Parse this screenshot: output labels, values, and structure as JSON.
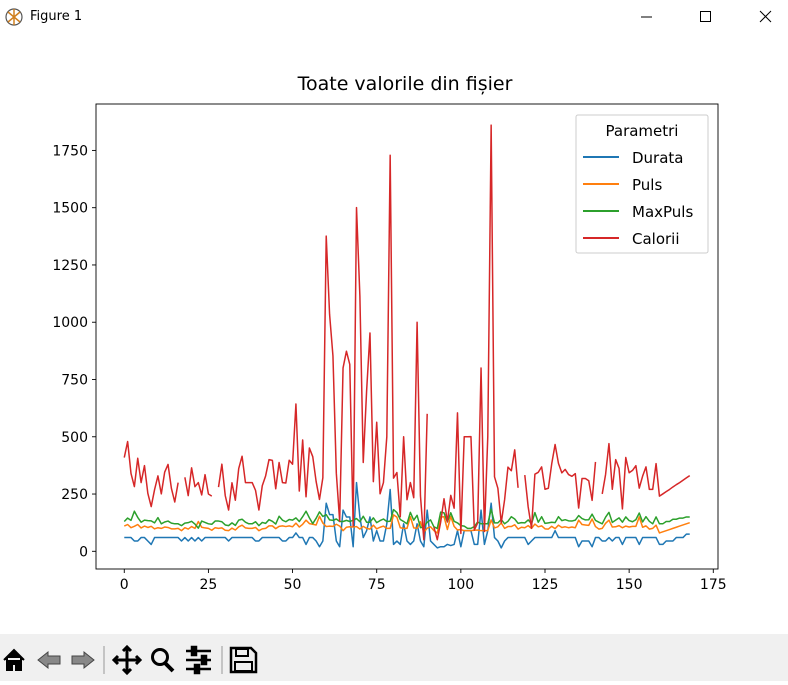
{
  "window": {
    "title": "Figure 1"
  },
  "chart_data": {
    "type": "line",
    "title": "Toate valorile din fișier",
    "legend_title": "Parametri",
    "legend_loc": "upper right",
    "xlim": [
      -8.4,
      176.4
    ],
    "ylim": [
      -77.27,
      1952.67
    ],
    "xticks": [
      0,
      25,
      50,
      75,
      100,
      125,
      150,
      175
    ],
    "yticks": [
      0,
      250,
      500,
      750,
      1000,
      1250,
      1500,
      1750
    ],
    "x": [
      0,
      1,
      2,
      3,
      4,
      5,
      6,
      7,
      8,
      9,
      10,
      11,
      12,
      13,
      14,
      15,
      16,
      17,
      18,
      19,
      20,
      21,
      22,
      23,
      24,
      25,
      26,
      27,
      28,
      29,
      30,
      31,
      32,
      33,
      34,
      35,
      36,
      37,
      38,
      39,
      40,
      41,
      42,
      43,
      44,
      45,
      46,
      47,
      48,
      49,
      50,
      51,
      52,
      53,
      54,
      55,
      56,
      57,
      58,
      59,
      60,
      61,
      62,
      63,
      64,
      65,
      66,
      67,
      68,
      69,
      70,
      71,
      72,
      73,
      74,
      75,
      76,
      77,
      78,
      79,
      80,
      81,
      82,
      83,
      84,
      85,
      86,
      87,
      88,
      89,
      90,
      91,
      92,
      93,
      94,
      95,
      96,
      97,
      98,
      99,
      100,
      101,
      102,
      103,
      104,
      105,
      106,
      107,
      108,
      109,
      110,
      111,
      112,
      113,
      114,
      115,
      116,
      117,
      118,
      119,
      120,
      121,
      122,
      123,
      124,
      125,
      126,
      127,
      128,
      129,
      130,
      131,
      132,
      133,
      134,
      135,
      136,
      137,
      138,
      139,
      140,
      141,
      142,
      143,
      144,
      145,
      146,
      147,
      148,
      149,
      150,
      151,
      152,
      153,
      154,
      155,
      156,
      157,
      158,
      159,
      160,
      161,
      162,
      163,
      164,
      165,
      166,
      167,
      168
    ],
    "series": [
      {
        "name": "Durata",
        "color": "#1f77b4",
        "values": [
          60,
          60,
          60,
          45,
          45,
          60,
          60,
          45,
          30,
          60,
          60,
          60,
          60,
          60,
          60,
          60,
          60,
          45,
          60,
          45,
          60,
          45,
          60,
          45,
          60,
          60,
          60,
          60,
          60,
          60,
          60,
          45,
          60,
          60,
          60,
          60,
          60,
          60,
          60,
          45,
          45,
          60,
          60,
          60,
          60,
          60,
          60,
          45,
          45,
          60,
          60,
          80,
          60,
          60,
          30,
          60,
          60,
          45,
          20,
          45,
          210,
          160,
          160,
          45,
          20,
          180,
          150,
          150,
          20,
          300,
          150,
          60,
          90,
          150,
          45,
          90,
          45,
          45,
          120,
          270,
          30,
          45,
          30,
          120,
          45,
          30,
          45,
          120,
          45,
          20,
          180,
          45,
          30,
          15,
          20,
          20,
          30,
          25,
          30,
          90,
          20,
          90,
          90,
          90,
          30,
          30,
          180,
          30,
          90,
          210,
          60,
          45,
          15,
          45,
          60,
          60,
          60,
          60,
          60,
          60,
          30,
          45,
          60,
          60,
          60,
          60,
          60,
          60,
          90,
          60,
          60,
          60,
          60,
          60,
          60,
          20,
          45,
          45,
          45,
          20,
          60,
          60,
          45,
          45,
          60,
          45,
          60,
          60,
          30,
          60,
          60,
          60,
          60,
          30,
          60,
          60,
          60,
          60,
          60,
          30,
          30,
          45,
          45,
          45,
          60,
          60,
          60,
          75,
          75
        ]
      },
      {
        "name": "Puls",
        "color": "#ff7f0e",
        "values": [
          110,
          117,
          103,
          109,
          117,
          102,
          110,
          104,
          109,
          98,
          103,
          100,
          106,
          104,
          98,
          98,
          100,
          90,
          103,
          97,
          108,
          100,
          130,
          105,
          102,
          100,
          92,
          103,
          100,
          102,
          92,
          90,
          101,
          93,
          107,
          114,
          102,
          100,
          100,
          104,
          90,
          98,
          100,
          111,
          111,
          99,
          109,
          111,
          108,
          111,
          107,
          123,
          106,
          118,
          136,
          121,
          118,
          115,
          153,
          123,
          108,
          110,
          109,
          118,
          110,
          90,
          105,
          107,
          106,
          108,
          97,
          109,
          100,
          97,
          114,
          98,
          105,
          110,
          100,
          100,
          159,
          149,
          103,
          100,
          100,
          151,
          102,
          100,
          129,
          83,
          101,
          107,
          90,
          80,
          150,
          151,
          95,
          152,
          109,
          93,
          95,
          90,
          90,
          90,
          92,
          93,
          90,
          90,
          90,
          137,
          102,
          107,
          124,
          100,
          108,
          108,
          116,
          97,
          105,
          103,
          112,
          100,
          119,
          107,
          111,
          98,
          97,
          109,
          99,
          114,
          104,
          107,
          103,
          106,
          103,
          136,
          117,
          115,
          113,
          141,
          108,
          97,
          100,
          122,
          136,
          106,
          107,
          112,
          103,
          110,
          106,
          109,
          109,
          150,
          105,
          111,
          97,
          100,
          114,
          80,
          85,
          90,
          95,
          100,
          105,
          110,
          115,
          120,
          125
        ]
      },
      {
        "name": "MaxPuls",
        "color": "#2ca02c",
        "values": [
          130,
          145,
          135,
          175,
          148,
          127,
          136,
          134,
          133,
          124,
          147,
          120,
          128,
          132,
          123,
          120,
          120,
          112,
          123,
          125,
          131,
          119,
          101,
          132,
          126,
          120,
          118,
          132,
          132,
          129,
          115,
          112,
          124,
          113,
          136,
          140,
          127,
          120,
          120,
          129,
          112,
          126,
          122,
          138,
          131,
          119,
          153,
          136,
          129,
          139,
          136,
          146,
          130,
          151,
          175,
          146,
          121,
          144,
          172,
          152,
          160,
          137,
          135,
          141,
          130,
          130,
          135,
          130,
          136,
          143,
          129,
          153,
          127,
          127,
          146,
          125,
          134,
          141,
          130,
          131,
          182,
          169,
          139,
          130,
          120,
          170,
          136,
          157,
          103,
          107,
          127,
          137,
          107,
          100,
          171,
          168,
          128,
          168,
          131,
          124,
          112,
          110,
          100,
          100,
          108,
          128,
          120,
          120,
          120,
          184,
          124,
          124,
          139,
          120,
          131,
          151,
          141,
          122,
          125,
          124,
          137,
          120,
          169,
          127,
          151,
          122,
          124,
          127,
          125,
          151,
          134,
          138,
          133,
          132,
          136,
          156,
          143,
          137,
          138,
          162,
          135,
          127,
          120,
          149,
          170,
          126,
          136,
          146,
          127,
          150,
          134,
          129,
          138,
          167,
          128,
          151,
          131,
          120,
          150,
          120,
          120,
          130,
          130,
          140,
          140,
          145,
          145,
          150,
          150
        ]
      },
      {
        "name": "Calorii",
        "color": "#d62728",
        "values": [
          409.1,
          479.0,
          340.0,
          282.4,
          406.0,
          300.0,
          374.0,
          253.3,
          195.1,
          269.0,
          329.3,
          250.7,
          345.3,
          379.3,
          275.0,
          215.2,
          300.0,
          null,
          323.0,
          243.0,
          364.2,
          282.0,
          300.0,
          246.0,
          334.5,
          250.0,
          241.0,
          null,
          280.0,
          380.3,
          243.0,
          180.1,
          299.0,
          223.0,
          361.0,
          415.0,
          300.0,
          300.0,
          300.0,
          266.0,
          180.1,
          286.0,
          329.4,
          400.0,
          397.0,
          273.0,
          387.6,
          300.0,
          298.0,
          397.6,
          380.2,
          643.1,
          263.0,
          486.0,
          238.0,
          450.7,
          413.0,
          305.0,
          226.4,
          321.0,
          1376.0,
          1034.4,
          853.0,
          341.0,
          131.4,
          800.4,
          873.4,
          816.0,
          110.4,
          1500.2,
          1115.0,
          387.6,
          700.0,
          953.2,
          304.0,
          563.2,
          251.0,
          300.0,
          500.4,
          1729.0,
          319.2,
          344.0,
          151.1,
          500.0,
          225.3,
          300.1,
          234.0,
          1000.1,
          242.0,
          50.3,
          600.1,
          null,
          105.3,
          50.5,
          127.4,
          229.4,
          128.2,
          244.2,
          188.2,
          604.1,
          77.7,
          500.0,
          500.0,
          500.4,
          92.7,
          124.0,
          800.3,
          86.2,
          500.3,
          1860.4,
          325.2,
          275.0,
          124.2,
          225.3,
          367.6,
          351.7,
          443.0,
          277.4,
          null,
          332.7,
          193.9,
          100.7,
          336.7,
          344.9,
          368.5,
          271.0,
          275.3,
          382.0,
          466.4,
          384.0,
          342.5,
          357.5,
          335.0,
          327.5,
          339.0,
          189.0,
          317.7,
          318.0,
          308.0,
          222.4,
          390.0,
          null,
          250.4,
          335.4,
          470.2,
          270.8,
          400.0,
          361.9,
          185.0,
          409.4,
          343.0,
          353.2,
          374.0,
          275.8,
          328.0,
          368.5,
          270.4,
          270.4,
          382.8,
          240.9,
          250.4,
          260.4,
          270.0,
          280.9,
          290.8,
          300.0,
          310.2,
          320.4,
          330.4
        ]
      }
    ]
  }
}
